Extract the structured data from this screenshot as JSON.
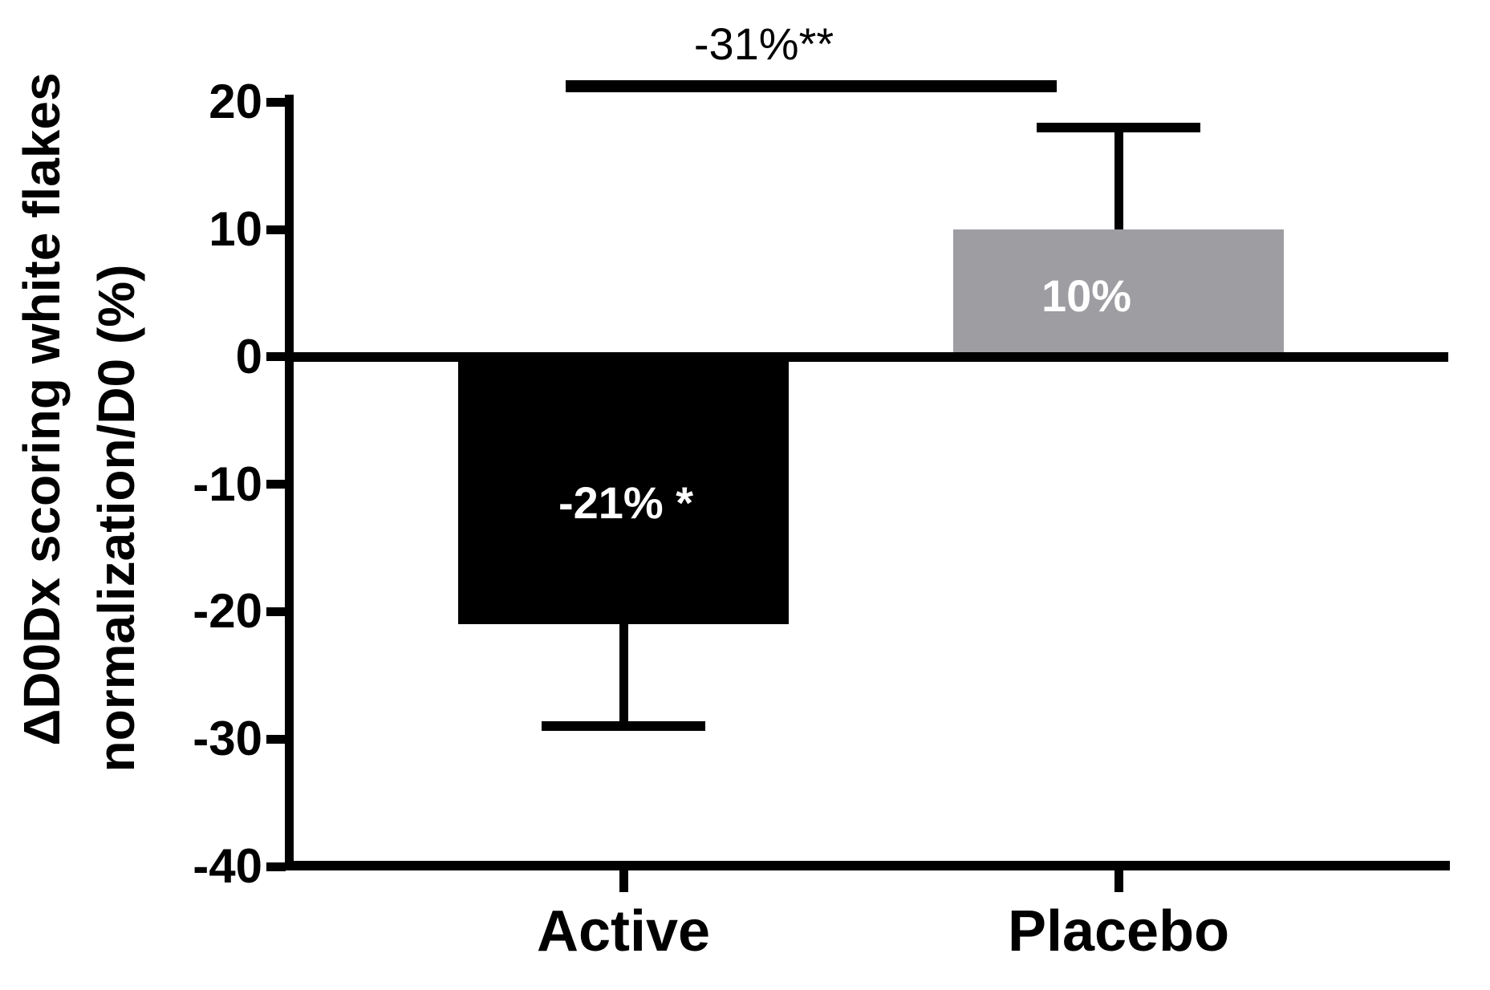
{
  "chart_data": {
    "type": "bar",
    "categories": [
      "Active",
      "Placebo"
    ],
    "values": [
      -21,
      10
    ],
    "error_tip_values": [
      -29,
      18
    ],
    "bar_value_labels": [
      "-21% *",
      "10%"
    ],
    "bar_colors": [
      "#000000",
      "#9e9da2"
    ],
    "bar_label_text_color": "#ffffff",
    "axis_color": "#000000",
    "title": "",
    "xlabel": "",
    "ylabel_lines": [
      "ΔD0Dx scoring white flakes",
      "normalization/D0 (%)"
    ],
    "ylabel": "ΔD0Dx scoring white flakes normalization/D0 (%)",
    "yticks": [
      20,
      10,
      0,
      -10,
      -20,
      -30,
      -40
    ],
    "ylim": [
      -40,
      20
    ],
    "grid": "off",
    "legend": "none",
    "significance_bracket": {
      "label": "-31%**",
      "between": [
        "Active",
        "Placebo"
      ]
    }
  }
}
